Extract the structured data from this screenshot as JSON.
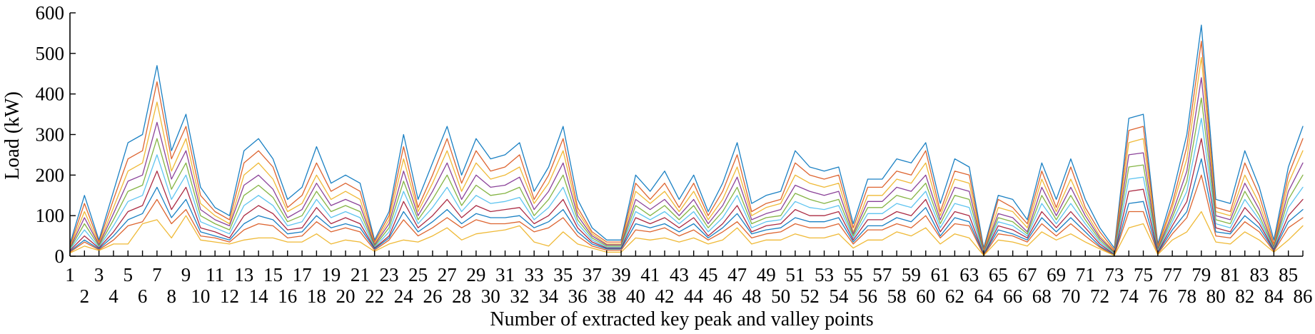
{
  "chart_data": {
    "type": "line",
    "title": "",
    "xlabel": "Number of extracted key peak and valley points",
    "ylabel": "Load (kW)",
    "ylim": [
      0,
      600
    ],
    "xlim": [
      1,
      86
    ],
    "yticks": [
      0,
      100,
      200,
      300,
      400,
      500,
      600
    ],
    "xticks": [
      1,
      2,
      3,
      4,
      5,
      6,
      7,
      8,
      9,
      10,
      11,
      12,
      13,
      14,
      15,
      16,
      17,
      18,
      19,
      20,
      21,
      22,
      23,
      24,
      25,
      26,
      27,
      28,
      29,
      30,
      31,
      32,
      33,
      34,
      35,
      36,
      37,
      38,
      39,
      40,
      41,
      42,
      43,
      44,
      45,
      46,
      47,
      48,
      49,
      50,
      51,
      52,
      53,
      54,
      55,
      56,
      57,
      58,
      59,
      60,
      61,
      62,
      63,
      64,
      65,
      66,
      67,
      68,
      69,
      70,
      71,
      72,
      73,
      74,
      75,
      76,
      77,
      78,
      79,
      80,
      81,
      82,
      83,
      84,
      85,
      86
    ],
    "grid": false,
    "legend": "none",
    "note_series_count": "many overlapping load curves; representative envelope series listed",
    "palette": [
      "#0072BD",
      "#D95319",
      "#EDB120",
      "#7E2F8E",
      "#77AC30",
      "#4DBEEE",
      "#A2142F"
    ],
    "series": [
      {
        "values": [
          30,
          150,
          40,
          160,
          280,
          300,
          470,
          260,
          350,
          170,
          120,
          100,
          260,
          290,
          240,
          140,
          170,
          270,
          180,
          200,
          180,
          40,
          110,
          300,
          140,
          230,
          320,
          200,
          290,
          240,
          250,
          280,
          160,
          220,
          320,
          140,
          70,
          40,
          40,
          200,
          160,
          210,
          140,
          200,
          110,
          180,
          280,
          130,
          150,
          160,
          260,
          220,
          210,
          220,
          80,
          190,
          190,
          240,
          230,
          280,
          130,
          240,
          220,
          20,
          150,
          140,
          90,
          230,
          140,
          240,
          140,
          70,
          20,
          340,
          350,
          30,
          150,
          300,
          570,
          140,
          130,
          260,
          170,
          40,
          220,
          320
        ]
      },
      {
        "values": [
          25,
          130,
          35,
          140,
          240,
          260,
          430,
          240,
          320,
          150,
          110,
          90,
          230,
          260,
          220,
          120,
          150,
          230,
          160,
          180,
          160,
          35,
          100,
          270,
          120,
          200,
          290,
          180,
          260,
          210,
          220,
          250,
          140,
          200,
          290,
          120,
          60,
          35,
          35,
          180,
          140,
          180,
          120,
          180,
          100,
          160,
          250,
          110,
          130,
          140,
          230,
          200,
          190,
          200,
          70,
          170,
          170,
          210,
          200,
          260,
          110,
          210,
          200,
          15,
          140,
          120,
          80,
          210,
          120,
          220,
          120,
          60,
          15,
          310,
          320,
          25,
          130,
          270,
          530,
          120,
          110,
          230,
          150,
          30,
          200,
          290
        ]
      },
      {
        "values": [
          22,
          110,
          30,
          120,
          210,
          230,
          380,
          210,
          290,
          130,
          100,
          80,
          200,
          230,
          190,
          110,
          130,
          200,
          140,
          160,
          140,
          30,
          90,
          240,
          110,
          180,
          260,
          160,
          230,
          190,
          200,
          220,
          130,
          180,
          260,
          110,
          55,
          30,
          30,
          160,
          130,
          160,
          110,
          160,
          90,
          140,
          220,
          100,
          120,
          130,
          200,
          180,
          170,
          180,
          60,
          150,
          150,
          190,
          180,
          230,
          100,
          190,
          180,
          12,
          120,
          110,
          70,
          190,
          110,
          190,
          110,
          50,
          12,
          280,
          290,
          20,
          120,
          240,
          490,
          110,
          100,
          200,
          130,
          25,
          180,
          260
        ]
      },
      {
        "values": [
          20,
          95,
          28,
          105,
          185,
          200,
          330,
          190,
          260,
          115,
          90,
          75,
          175,
          200,
          165,
          95,
          115,
          180,
          125,
          140,
          125,
          28,
          80,
          210,
          100,
          160,
          230,
          140,
          200,
          170,
          175,
          195,
          115,
          160,
          230,
          100,
          50,
          28,
          28,
          140,
          115,
          140,
          100,
          140,
          80,
          125,
          195,
          90,
          105,
          115,
          175,
          160,
          150,
          160,
          55,
          135,
          135,
          170,
          160,
          200,
          90,
          170,
          160,
          10,
          105,
          95,
          60,
          170,
          100,
          170,
          100,
          45,
          10,
          250,
          255,
          18,
          105,
          210,
          440,
          100,
          90,
          180,
          115,
          22,
          160,
          230
        ]
      },
      {
        "values": [
          18,
          80,
          25,
          90,
          160,
          175,
          290,
          165,
          230,
          100,
          80,
          65,
          150,
          175,
          145,
          85,
          100,
          160,
          110,
          125,
          110,
          25,
          70,
          185,
          90,
          140,
          200,
          125,
          175,
          150,
          155,
          170,
          100,
          140,
          200,
          90,
          45,
          25,
          25,
          125,
          100,
          125,
          90,
          125,
          70,
          110,
          170,
          80,
          95,
          100,
          155,
          140,
          130,
          140,
          50,
          120,
          120,
          150,
          140,
          180,
          80,
          150,
          140,
          8,
          95,
          85,
          55,
          150,
          90,
          150,
          90,
          40,
          8,
          220,
          225,
          15,
          95,
          185,
          390,
          90,
          80,
          160,
          100,
          20,
          140,
          200
        ]
      },
      {
        "values": [
          16,
          65,
          22,
          75,
          135,
          150,
          250,
          140,
          200,
          85,
          70,
          55,
          125,
          150,
          125,
          75,
          85,
          140,
          95,
          110,
          95,
          22,
          60,
          160,
          80,
          120,
          170,
          110,
          150,
          130,
          135,
          145,
          90,
          120,
          170,
          80,
          40,
          22,
          22,
          110,
          90,
          110,
          80,
          110,
          60,
          95,
          150,
          70,
          85,
          90,
          135,
          120,
          115,
          125,
          45,
          105,
          105,
          130,
          120,
          160,
          70,
          130,
          120,
          6,
          85,
          75,
          50,
          130,
          80,
          130,
          80,
          35,
          6,
          190,
          195,
          12,
          85,
          160,
          340,
          80,
          70,
          140,
          90,
          18,
          120,
          170
        ]
      },
      {
        "values": [
          14,
          50,
          20,
          60,
          110,
          125,
          210,
          115,
          170,
          70,
          60,
          45,
          100,
          125,
          105,
          65,
          70,
          120,
          80,
          95,
          80,
          20,
          50,
          135,
          70,
          100,
          140,
          95,
          125,
          110,
          115,
          120,
          80,
          100,
          140,
          70,
          35,
          20,
          20,
          95,
          80,
          95,
          70,
          95,
          50,
          80,
          125,
          60,
          75,
          80,
          115,
          100,
          100,
          110,
          40,
          90,
          90,
          110,
          100,
          140,
          60,
          110,
          100,
          4,
          75,
          65,
          45,
          110,
          70,
          110,
          70,
          30,
          4,
          160,
          165,
          10,
          75,
          135,
          290,
          70,
          60,
          120,
          80,
          16,
          100,
          140
        ]
      },
      {
        "values": [
          12,
          40,
          18,
          50,
          90,
          105,
          170,
          95,
          140,
          60,
          50,
          40,
          80,
          100,
          90,
          55,
          60,
          100,
          70,
          80,
          70,
          18,
          45,
          110,
          60,
          85,
          115,
          80,
          105,
          95,
          95,
          100,
          70,
          85,
          115,
          60,
          30,
          18,
          18,
          80,
          70,
          80,
          60,
          80,
          45,
          70,
          105,
          55,
          65,
          70,
          95,
          85,
          85,
          95,
          35,
          75,
          75,
          95,
          85,
          120,
          50,
          95,
          85,
          3,
          65,
          55,
          40,
          95,
          60,
          95,
          60,
          25,
          3,
          130,
          135,
          8,
          65,
          110,
          240,
          60,
          55,
          100,
          70,
          14,
          85,
          115
        ]
      },
      {
        "values": [
          10,
          35,
          16,
          40,
          75,
          85,
          140,
          80,
          115,
          50,
          45,
          35,
          65,
          80,
          75,
          45,
          50,
          85,
          60,
          70,
          60,
          15,
          40,
          90,
          50,
          70,
          95,
          70,
          90,
          80,
          80,
          85,
          60,
          70,
          95,
          50,
          25,
          15,
          15,
          65,
          60,
          70,
          50,
          65,
          40,
          60,
          85,
          45,
          55,
          60,
          80,
          70,
          70,
          80,
          30,
          65,
          65,
          80,
          70,
          100,
          45,
          80,
          75,
          2,
          55,
          50,
          35,
          80,
          50,
          80,
          50,
          22,
          2,
          110,
          110,
          6,
          55,
          95,
          200,
          50,
          45,
          85,
          60,
          12,
          70,
          95
        ]
      },
      {
        "values": [
          8,
          25,
          14,
          30,
          30,
          80,
          90,
          45,
          100,
          40,
          35,
          30,
          40,
          45,
          45,
          35,
          35,
          55,
          30,
          40,
          35,
          12,
          30,
          40,
          35,
          50,
          70,
          40,
          55,
          60,
          65,
          75,
          35,
          25,
          60,
          30,
          20,
          10,
          10,
          45,
          40,
          45,
          35,
          45,
          30,
          40,
          70,
          30,
          40,
          40,
          55,
          45,
          45,
          55,
          20,
          40,
          40,
          60,
          50,
          70,
          30,
          55,
          45,
          2,
          40,
          35,
          25,
          60,
          40,
          55,
          35,
          18,
          2,
          70,
          80,
          4,
          40,
          60,
          110,
          35,
          30,
          60,
          40,
          10,
          40,
          75
        ]
      }
    ]
  }
}
